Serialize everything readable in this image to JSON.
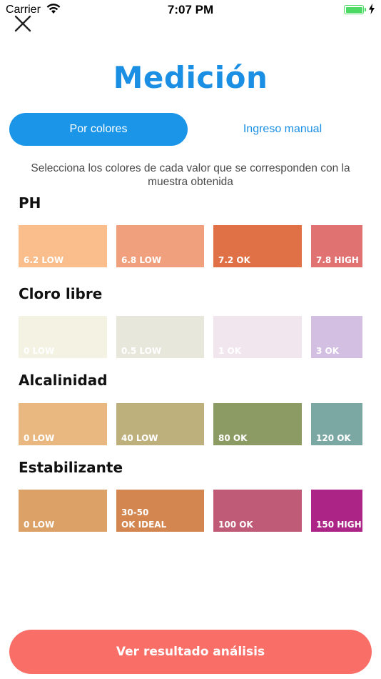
{
  "status_bar": {
    "carrier": "Carrier",
    "time": "7:07 PM",
    "icons": [
      "wifi-icon",
      "battery-icon",
      "charging-icon"
    ]
  },
  "close_icon": "close-icon",
  "title": "Medición",
  "tabs": {
    "active": "Por colores",
    "inactive": "Ingreso manual"
  },
  "instructions": "Selecciona los colores de cada valor que se corresponden con la muestra obtenida",
  "sections": [
    {
      "title": "PH",
      "swatches": [
        {
          "label": "6.2 LOW",
          "color": "#f9be8b"
        },
        {
          "label": "6.8 LOW",
          "color": "#f0a07c"
        },
        {
          "label": "7.2 OK",
          "color": "#e07045"
        },
        {
          "label": "7.8 HIGH",
          "color": "#e17272"
        }
      ]
    },
    {
      "title": "Cloro libre",
      "swatches": [
        {
          "label": "0 LOW",
          "color": "#f3f2e3"
        },
        {
          "label": "0.5 LOW",
          "color": "#e8e7dc"
        },
        {
          "label": "1 OK",
          "color": "#f1e5ee"
        },
        {
          "label": "3 OK",
          "color": "#d2bfe1"
        }
      ]
    },
    {
      "title": "Alcalinidad",
      "swatches": [
        {
          "label": "0 LOW",
          "color": "#e8b880"
        },
        {
          "label": "40 LOW",
          "color": "#bdb07c"
        },
        {
          "label": "80 OK",
          "color": "#8c9b63"
        },
        {
          "label": "120 OK",
          "color": "#7ca8a3"
        }
      ]
    },
    {
      "title": "Estabilizante",
      "swatches": [
        {
          "label": "0 LOW",
          "color": "#dca166"
        },
        {
          "label": "30-50\nOK IDEAL",
          "color": "#d3864f"
        },
        {
          "label": "100 OK",
          "color": "#bf5b76"
        },
        {
          "label": "150 HIGH",
          "color": "#ac2586"
        }
      ]
    }
  ],
  "cta_label": "Ver resultado análisis",
  "colors": {
    "accent": "#1a95e8",
    "cta": "#fa6e68"
  }
}
